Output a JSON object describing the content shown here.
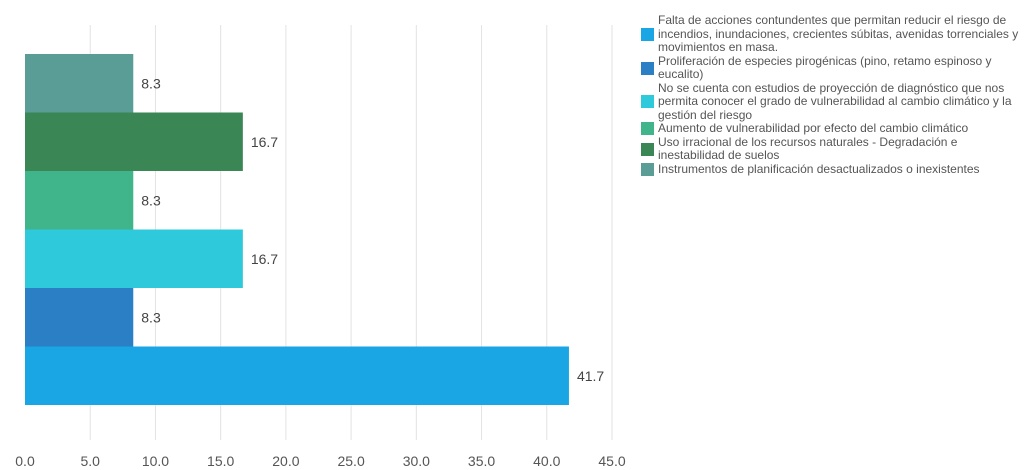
{
  "chart_data": {
    "type": "bar",
    "orientation": "horizontal",
    "title": "",
    "xlabel": "",
    "ylabel": "",
    "xlim": [
      0,
      45
    ],
    "x_ticks": [
      "0.0",
      "5.0",
      "10.0",
      "15.0",
      "20.0",
      "25.0",
      "30.0",
      "35.0",
      "40.0",
      "45.0"
    ],
    "grid": true,
    "legend_position": "right",
    "categories": [
      "Falta de acciones contundentes que permitan reducir el riesgo de incendios, inundaciones, crecientes súbitas, avenidas torrenciales y movimientos en masa.",
      "Proliferación de especies pirogénicas (pino, retamo espinoso y eucalito)",
      "No se cuenta con estudios de proyección de diagnóstico que nos permita conocer el grado de vulnerabilidad al cambio climático y la gestión del riesgo",
      "Aumento de vulnerabilidad por efecto del cambio climático",
      "Uso irracional de los recursos naturales - Degradación e inestabilidad de suelos",
      "Instrumentos de planificación desactualizados o inexistentes"
    ],
    "values": [
      41.7,
      8.3,
      16.7,
      8.3,
      16.7,
      8.3
    ],
    "value_labels": [
      "41.7",
      "8.3",
      "16.7",
      "8.3",
      "16.7",
      "8.3"
    ],
    "colors": [
      "#1aa6e4",
      "#2b7fc4",
      "#2ec9da",
      "#40b48a",
      "#3a8655",
      "#5a9d96"
    ]
  }
}
